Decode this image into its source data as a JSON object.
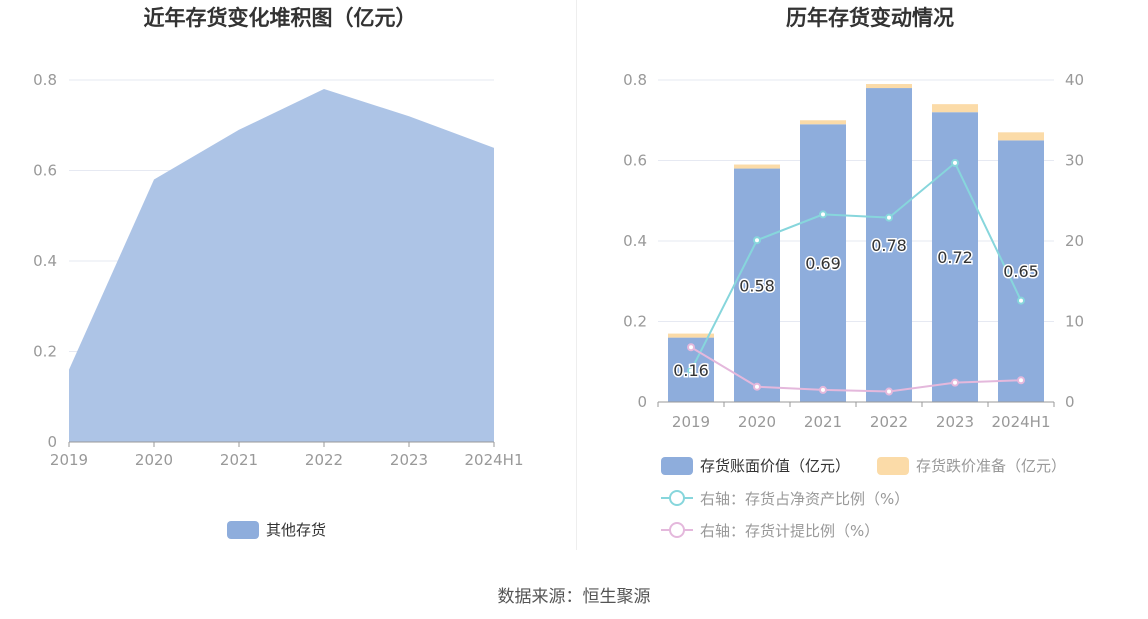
{
  "left_chart": {
    "title": "近年存货变化堆积图（亿元）",
    "legend_label": "其他存货"
  },
  "right_chart": {
    "title": "历年存货变动情况",
    "legend": {
      "bar1": "存货账面价值（亿元）",
      "bar2": "存货跌价准备（亿元）",
      "line1": "右轴：存货占净资产比例（%）",
      "line2": "右轴：存货计提比例（%）"
    }
  },
  "source": {
    "label": "数据来源：",
    "value": "恒生聚源"
  },
  "colors": {
    "area": "#adc4e6",
    "bar_value": "#8eaddc",
    "bar_reserve": "#fbdba8",
    "line_ratio_net_assets": "#87d6dc",
    "line_provision_ratio": "#e4b8dc",
    "axis_text": "#999999",
    "grid": "#e6e9f2"
  },
  "chart_data": [
    {
      "type": "area",
      "title": "近年存货变化堆积图（亿元）",
      "categories": [
        "2019",
        "2020",
        "2021",
        "2022",
        "2023",
        "2024H1"
      ],
      "series": [
        {
          "name": "其他存货",
          "values": [
            0.16,
            0.58,
            0.69,
            0.78,
            0.72,
            0.65
          ]
        }
      ],
      "ylim": [
        0,
        0.8
      ],
      "yticks": [
        "0",
        "0.2",
        "0.4",
        "0.6",
        "0.8"
      ],
      "grid": true,
      "legend_position": "bottom"
    },
    {
      "type": "bar",
      "title": "历年存货变动情况",
      "categories": [
        "2019",
        "2020",
        "2021",
        "2022",
        "2023",
        "2024H1"
      ],
      "series": [
        {
          "name": "存货账面价值（亿元）",
          "kind": "bar",
          "stack": "inv",
          "axis": "left",
          "values": [
            0.16,
            0.58,
            0.69,
            0.78,
            0.72,
            0.65
          ],
          "data_labels": [
            "0.16",
            "0.58",
            "0.69",
            "0.78",
            "0.72",
            "0.65"
          ]
        },
        {
          "name": "存货跌价准备（亿元）",
          "kind": "bar",
          "stack": "inv",
          "axis": "left",
          "values": [
            0.01,
            0.01,
            0.01,
            0.01,
            0.02,
            0.02
          ]
        },
        {
          "name": "右轴：存货占净资产比例（%）",
          "kind": "line",
          "axis": "right",
          "values": [
            3.9,
            20.1,
            23.3,
            22.9,
            29.7,
            12.6
          ]
        },
        {
          "name": "右轴：存货计提比例（%）",
          "kind": "line",
          "axis": "right",
          "values": [
            6.8,
            1.9,
            1.5,
            1.3,
            2.4,
            2.7
          ]
        }
      ],
      "ylim_left": [
        0,
        0.8
      ],
      "yticks_left": [
        "0",
        "0.2",
        "0.4",
        "0.6",
        "0.8"
      ],
      "ylim_right": [
        0,
        40
      ],
      "yticks_right": [
        "0",
        "10",
        "20",
        "30",
        "40"
      ],
      "grid": true,
      "legend_position": "bottom"
    }
  ]
}
